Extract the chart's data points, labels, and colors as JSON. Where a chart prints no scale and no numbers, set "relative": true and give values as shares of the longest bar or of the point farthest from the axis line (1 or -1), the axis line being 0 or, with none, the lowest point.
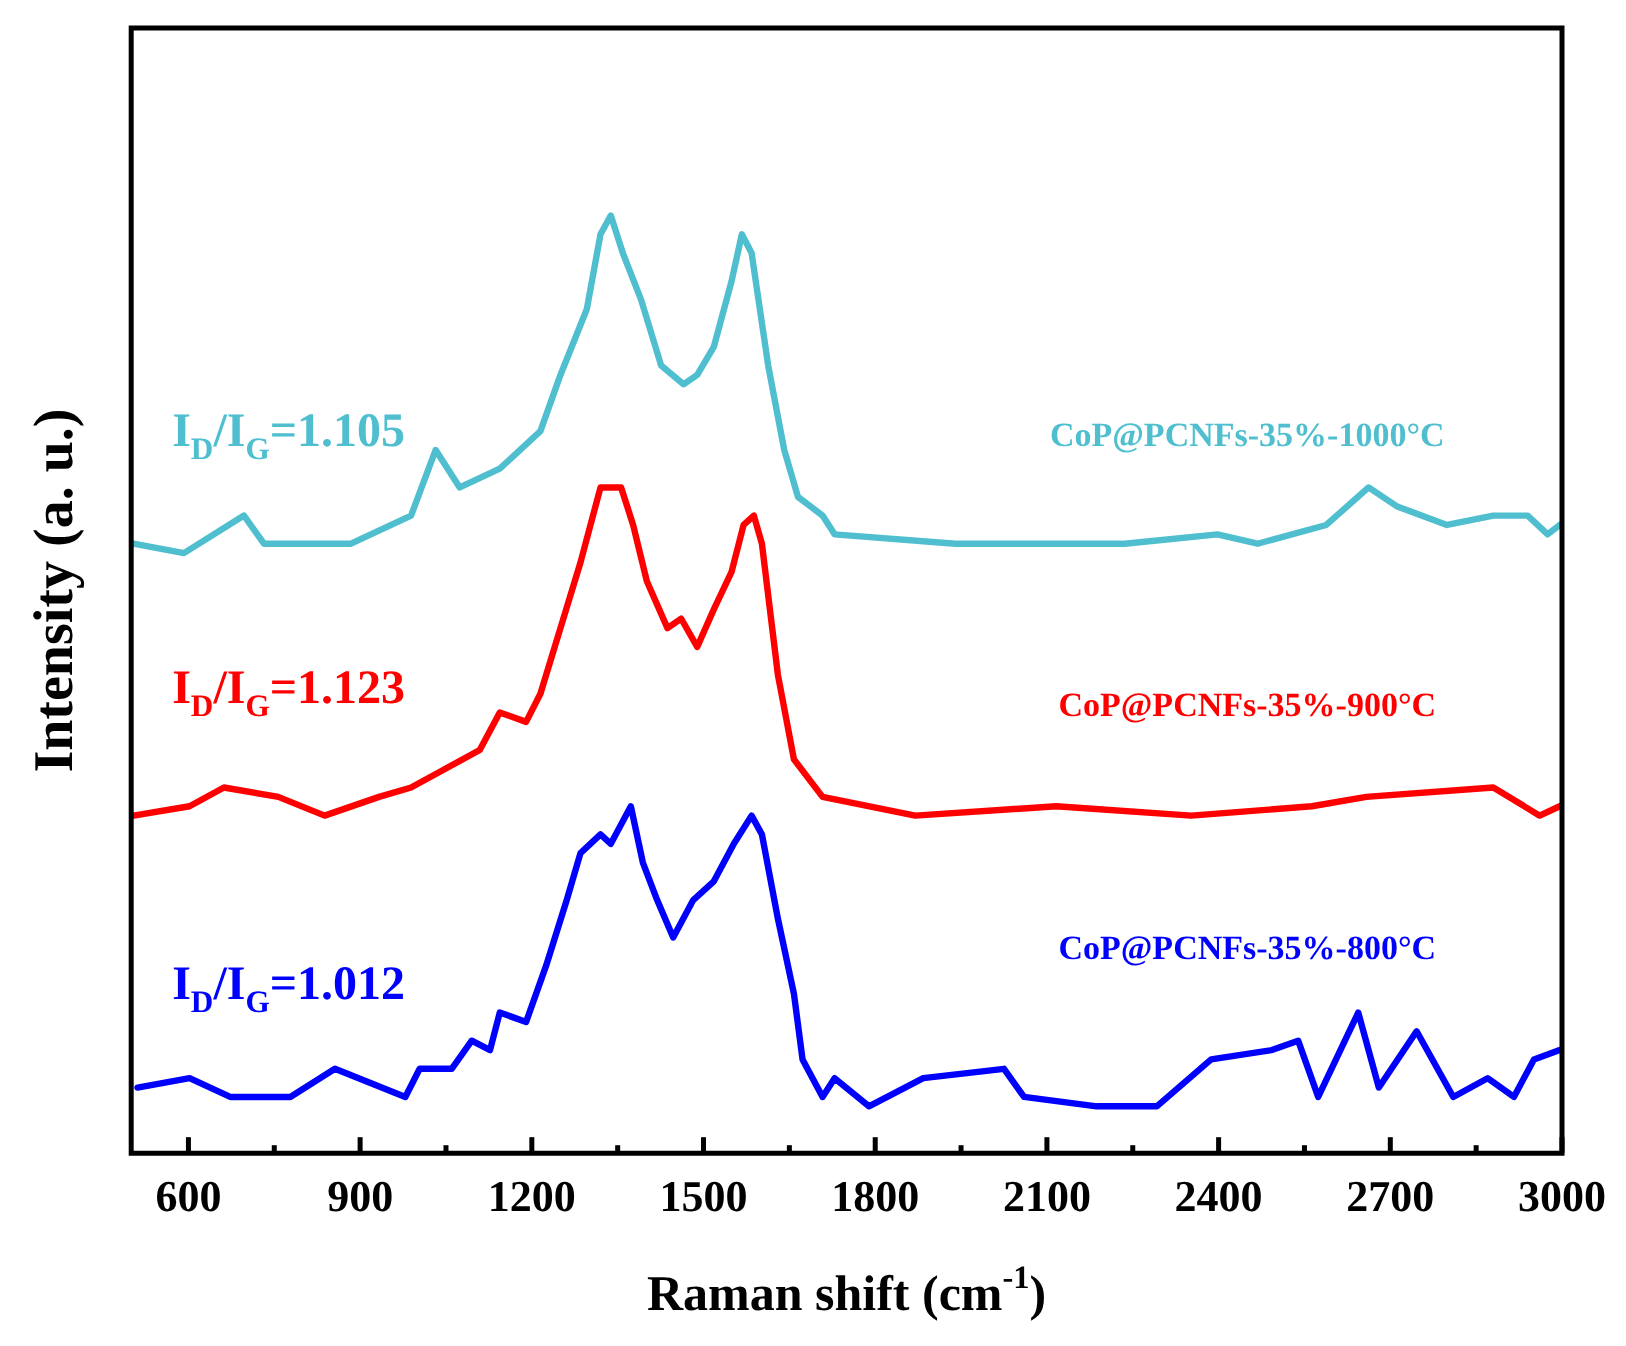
{
  "chart_data": {
    "type": "line",
    "relative": true,
    "xlabel": "Raman shift (cm$^{-1}$)",
    "ylabel": "Intensity (a. u.)",
    "xlim": [
      500,
      3000
    ],
    "xticks": [
      600,
      {
        "value": 750,
        "label": null
      },
      900,
      {
        "value": 1050,
        "label": null
      },
      1200,
      {
        "value": 1350,
        "label": null
      },
      1500,
      {
        "value": 1650,
        "label": null
      },
      1800,
      {
        "value": 1950,
        "label": null
      },
      2100,
      {
        "value": 2250,
        "label": null
      },
      2400,
      {
        "value": 2550,
        "label": null
      },
      2700,
      {
        "value": 2850,
        "label": null
      },
      3000
    ],
    "grid": false,
    "legend": false,
    "marker": "none",
    "line_style": "solid",
    "series": [
      {
        "name": "CoP@PCNFs-35%-1000°C",
        "color": "#4fbfcf",
        "x": [
          504,
          592,
          697,
          732,
          884,
          989,
          1032,
          1074,
          1144,
          1215,
          1250,
          1296,
          1320,
          1338,
          1359,
          1391,
          1426,
          1465,
          1489,
          1518,
          1549,
          1567,
          1584,
          1613,
          1641,
          1665,
          1708,
          1729,
          1940,
          2236,
          2398,
          2468,
          2588,
          2662,
          2711,
          2799,
          2880,
          2940,
          2975,
          2996
        ],
        "values": [
          0.65,
          0.64,
          0.68,
          0.65,
          0.65,
          0.68,
          0.75,
          0.71,
          0.73,
          0.77,
          0.83,
          0.9,
          0.98,
          1,
          0.96,
          0.91,
          0.84,
          0.82,
          0.83,
          0.86,
          0.93,
          0.98,
          0.96,
          0.84,
          0.75,
          0.7,
          0.68,
          0.66,
          0.65,
          0.65,
          0.66,
          0.65,
          0.67,
          0.71,
          0.69,
          0.67,
          0.68,
          0.68,
          0.66,
          0.67
        ]
      },
      {
        "name": "CoP@PCNFs-35%-900°C",
        "color": "#ff0000",
        "x": [
          504,
          602,
          662,
          757,
          838,
          933,
          989,
          1049,
          1109,
          1144,
          1190,
          1215,
          1250,
          1285,
          1320,
          1356,
          1377,
          1401,
          1437,
          1461,
          1489,
          1518,
          1549,
          1570,
          1588,
          1602,
          1620,
          1630,
          1658,
          1708,
          1870,
          2116,
          2352,
          2563,
          2658,
          2880,
          2961,
          2996
        ],
        "values": [
          0.36,
          0.37,
          0.39,
          0.38,
          0.36,
          0.38,
          0.39,
          0.41,
          0.43,
          0.47,
          0.46,
          0.49,
          0.56,
          0.63,
          0.71,
          0.71,
          0.67,
          0.61,
          0.56,
          0.57,
          0.54,
          0.58,
          0.62,
          0.67,
          0.68,
          0.65,
          0.56,
          0.51,
          0.42,
          0.38,
          0.36,
          0.37,
          0.36,
          0.37,
          0.38,
          0.39,
          0.36,
          0.37
        ]
      },
      {
        "name": "CoP@PCNFs-35%-800°C",
        "color": "#0000ff",
        "x": [
          511,
          602,
          673,
          778,
          856,
          979,
          1004,
          1060,
          1095,
          1127,
          1144,
          1190,
          1225,
          1261,
          1285,
          1320,
          1338,
          1373,
          1394,
          1419,
          1447,
          1482,
          1518,
          1553,
          1584,
          1602,
          1630,
          1658,
          1673,
          1708,
          1729,
          1789,
          1884,
          2025,
          2060,
          2187,
          2292,
          2387,
          2493,
          2539,
          2574,
          2644,
          2680,
          2746,
          2810,
          2870,
          2916,
          2951,
          2996
        ],
        "values": [
          0.07,
          0.08,
          0.06,
          0.06,
          0.09,
          0.06,
          0.09,
          0.09,
          0.12,
          0.11,
          0.15,
          0.14,
          0.2,
          0.27,
          0.32,
          0.34,
          0.33,
          0.37,
          0.31,
          0.27,
          0.23,
          0.27,
          0.29,
          0.33,
          0.36,
          0.34,
          0.25,
          0.17,
          0.1,
          0.06,
          0.08,
          0.05,
          0.08,
          0.09,
          0.06,
          0.05,
          0.05,
          0.1,
          0.11,
          0.12,
          0.06,
          0.15,
          0.07,
          0.13,
          0.06,
          0.08,
          0.06,
          0.1,
          0.11
        ]
      }
    ],
    "annotations": [
      "I$_{D}$/I$_{G}$=1.105",
      "I$_{D}$/I$_{G}$=1.123",
      "I$_{D}$/I$_{G}$=1.012"
    ]
  }
}
